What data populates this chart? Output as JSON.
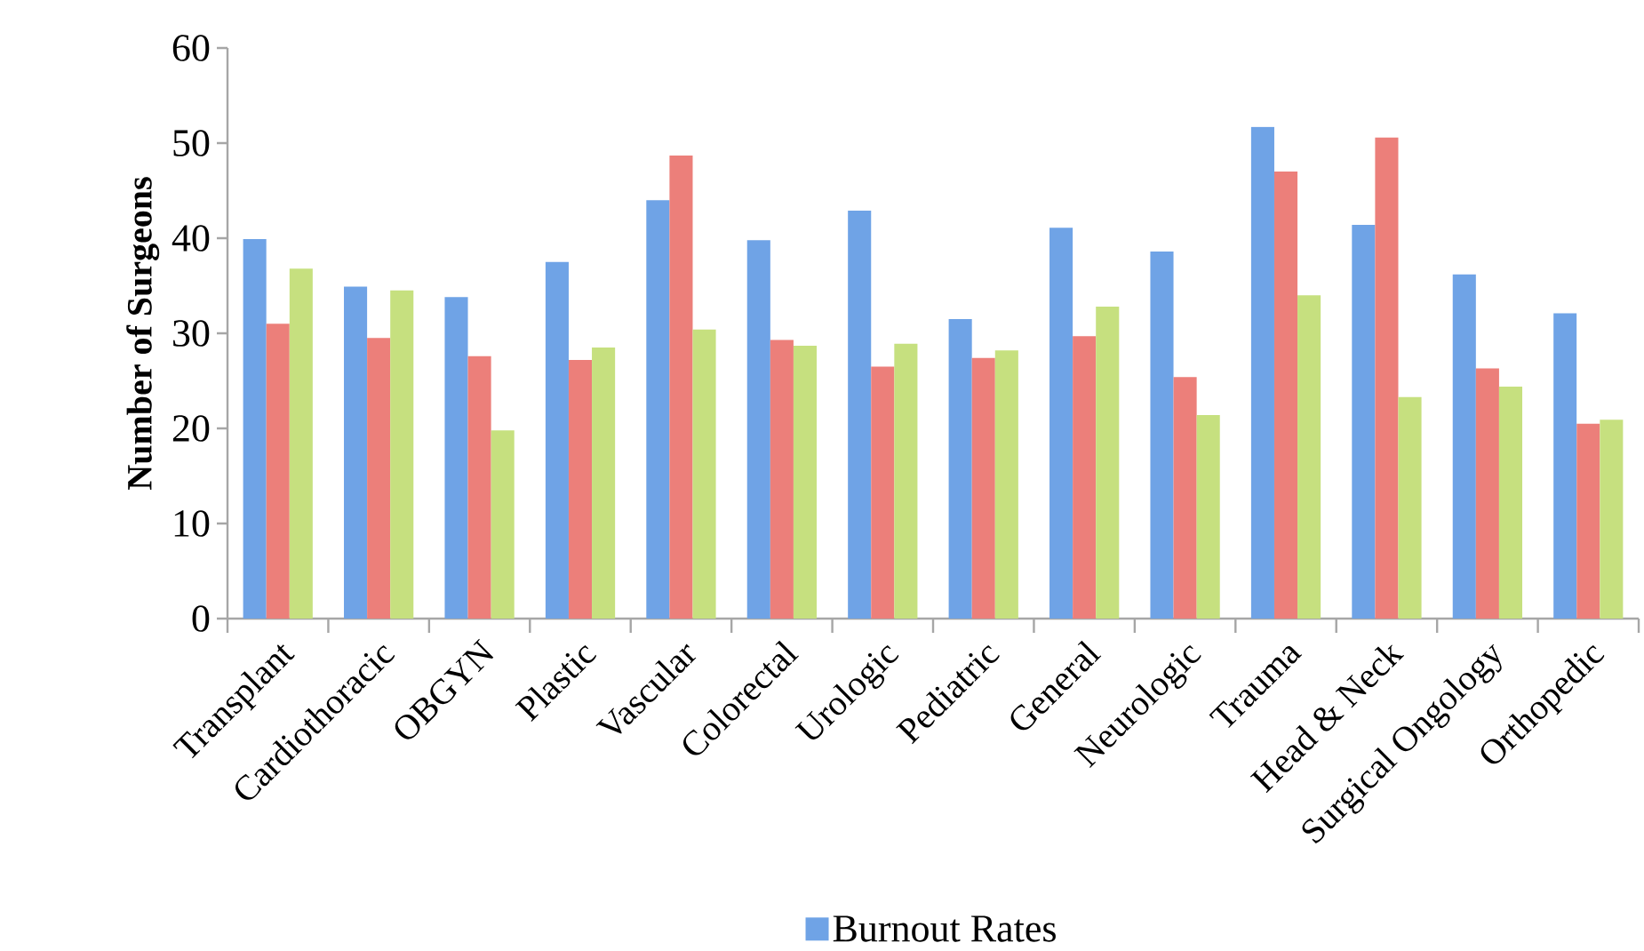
{
  "chart_data": {
    "type": "bar",
    "ylabel": "Number of Surgeons",
    "categories": [
      "Transplant",
      "Cardiothoracic",
      "OBGYN",
      "Plastic",
      "Vascular",
      "Colorectal",
      "Urologic",
      "Pediatric",
      "General",
      "Neurologic",
      "Trauma",
      "Head & Neck",
      "Surgical Ongology",
      "Orthopedic"
    ],
    "series": [
      {
        "name": "Burnout Rates",
        "color": "#6fa3e6",
        "values": [
          39.9,
          34.9,
          33.8,
          37.5,
          44.0,
          39.8,
          42.9,
          31.5,
          41.1,
          38.6,
          51.7,
          41.4,
          36.2,
          32.1
        ]
      },
      {
        "color": "#ec7f7a",
        "values": [
          31.0,
          29.5,
          27.6,
          27.2,
          48.7,
          29.3,
          26.5,
          27.4,
          29.7,
          25.4,
          47.0,
          50.6,
          26.3,
          20.5
        ]
      },
      {
        "color": "#c6e07f",
        "values": [
          36.8,
          34.5,
          19.8,
          28.5,
          30.4,
          28.7,
          28.9,
          28.2,
          32.8,
          21.4,
          34.0,
          23.3,
          24.4,
          20.9
        ]
      }
    ],
    "ylim": [
      0,
      60
    ],
    "yticks": [
      0,
      10,
      20,
      30,
      40,
      50,
      60
    ],
    "grid": false,
    "legend": "bottom"
  }
}
